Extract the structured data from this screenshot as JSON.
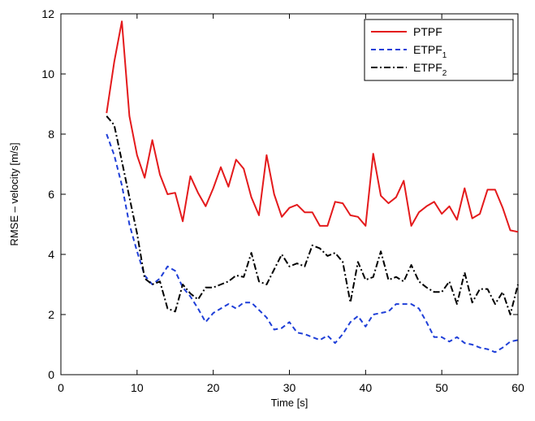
{
  "chart_data": {
    "type": "line",
    "title": "",
    "xlabel": "Time [s]",
    "ylabel": "RMSE – velocity [m/s]",
    "xlim": [
      0,
      60
    ],
    "ylim": [
      0,
      12
    ],
    "xticks": [
      "0",
      "10",
      "20",
      "30",
      "40",
      "50",
      "60"
    ],
    "yticks": [
      "0",
      "2",
      "4",
      "6",
      "8",
      "10",
      "12"
    ],
    "grid": false,
    "legend_position": "top-right",
    "x": [
      6,
      7,
      8,
      9,
      10,
      11,
      12,
      13,
      14,
      15,
      16,
      17,
      18,
      19,
      20,
      21,
      22,
      23,
      24,
      25,
      26,
      27,
      28,
      29,
      30,
      31,
      32,
      33,
      34,
      35,
      36,
      37,
      38,
      39,
      40,
      41,
      42,
      43,
      44,
      45,
      46,
      47,
      48,
      49,
      50,
      51,
      52,
      53,
      54,
      55,
      56,
      57,
      58,
      59,
      60
    ],
    "series": [
      {
        "name": "PTPF",
        "legend_base": "PTPF",
        "legend_sub": "",
        "color": "#e41a1c",
        "dash": "solid",
        "values": [
          8.7,
          10.4,
          11.75,
          8.6,
          7.3,
          6.55,
          7.8,
          6.65,
          6.0,
          6.05,
          5.1,
          6.6,
          6.05,
          5.6,
          6.2,
          6.9,
          6.25,
          7.15,
          6.85,
          5.9,
          5.3,
          7.3,
          6.0,
          5.25,
          5.55,
          5.65,
          5.4,
          5.4,
          4.95,
          4.95,
          5.75,
          5.7,
          5.3,
          5.25,
          4.95,
          7.35,
          5.95,
          5.7,
          5.9,
          6.45,
          4.95,
          5.4,
          5.6,
          5.75,
          5.35,
          5.6,
          5.15,
          6.2,
          5.2,
          5.35,
          6.15,
          6.15,
          5.55,
          4.8,
          4.75
        ]
      },
      {
        "name": "ETPF_1",
        "legend_base": "ETPF",
        "legend_sub": "1",
        "color": "#1f3fd8",
        "dash": "dashed",
        "values": [
          8.0,
          7.3,
          6.3,
          5.0,
          4.1,
          3.3,
          3.0,
          3.2,
          3.6,
          3.45,
          2.9,
          2.6,
          2.2,
          1.75,
          2.05,
          2.2,
          2.35,
          2.2,
          2.4,
          2.4,
          2.15,
          1.9,
          1.5,
          1.55,
          1.75,
          1.4,
          1.35,
          1.25,
          1.15,
          1.3,
          1.05,
          1.35,
          1.75,
          1.95,
          1.6,
          2.0,
          2.05,
          2.1,
          2.35,
          2.35,
          2.35,
          2.2,
          1.75,
          1.25,
          1.25,
          1.1,
          1.25,
          1.05,
          1.0,
          0.9,
          0.85,
          0.75,
          0.9,
          1.1,
          1.15
        ]
      },
      {
        "name": "ETPF_2",
        "legend_base": "ETPF",
        "legend_sub": "2",
        "color": "#000000",
        "dash": "dashdot",
        "values": [
          8.6,
          8.3,
          7.1,
          5.9,
          4.7,
          3.2,
          3.0,
          3.1,
          2.2,
          2.1,
          3.0,
          2.7,
          2.5,
          2.9,
          2.9,
          3.0,
          3.1,
          3.3,
          3.25,
          4.05,
          3.1,
          3.0,
          3.5,
          4.0,
          3.6,
          3.7,
          3.6,
          4.3,
          4.2,
          3.95,
          4.05,
          3.75,
          2.4,
          3.75,
          3.15,
          3.25,
          4.1,
          3.15,
          3.25,
          3.1,
          3.65,
          3.1,
          2.9,
          2.75,
          2.75,
          3.1,
          2.35,
          3.4,
          2.4,
          2.85,
          2.85,
          2.35,
          2.75,
          2.0,
          3.0
        ]
      }
    ]
  }
}
